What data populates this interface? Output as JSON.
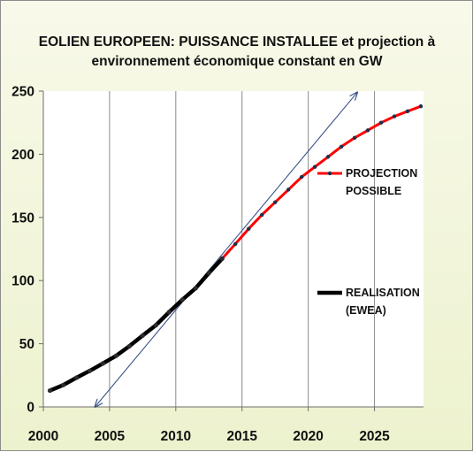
{
  "chart_data": {
    "type": "line",
    "title": "EOLIEN EUROPEEN: PUISSANCE INSTALLEE et projection à",
    "subtitle": "environnement économique constant  en GW",
    "xlabel": "",
    "ylabel": "",
    "xlim": [
      2000,
      2028.7
    ],
    "ylim": [
      0,
      250
    ],
    "x_ticks": [
      "2000",
      "2005",
      "2010",
      "2015",
      "2020",
      "2025"
    ],
    "y_ticks": [
      "0",
      "50",
      "100",
      "150",
      "200",
      "250"
    ],
    "grid": "vertical",
    "series": [
      {
        "name_lines": [
          "REALISATION",
          "(EWEA)"
        ],
        "color": "#000000",
        "x": [
          2000.5,
          2001.5,
          2002.5,
          2003.5,
          2004.5,
          2005.5,
          2006.5,
          2007.5,
          2008.5,
          2009.5,
          2010.5,
          2011.5,
          2012.5,
          2013.5
        ],
        "y": [
          12.9,
          17.3,
          23.1,
          28.5,
          34.4,
          40.5,
          48.1,
          56.5,
          64.7,
          75.1,
          84.9,
          94.0,
          106.0,
          117.4
        ]
      },
      {
        "name_lines": [
          "PROJECTION",
          "POSSIBLE"
        ],
        "color": "#ff0000",
        "marker_color": "#1f2f4a",
        "x": [
          2013.5,
          2014.5,
          2015.5,
          2016.5,
          2017.5,
          2018.5,
          2019.5,
          2020.5,
          2021.5,
          2022.5,
          2023.5,
          2024.5,
          2025.5,
          2026.5,
          2027.5,
          2028.5
        ],
        "y": [
          117.4,
          129.0,
          141.0,
          152.0,
          162.0,
          172.0,
          182.0,
          190.0,
          198.0,
          206.0,
          213.0,
          219.0,
          225.0,
          230.0,
          234.0,
          238.0
        ]
      }
    ],
    "trend_arrow": {
      "color": "#3b5487",
      "start": [
        2003.9,
        0
      ],
      "end": [
        2023.7,
        249
      ]
    },
    "legend_placement": "right"
  }
}
